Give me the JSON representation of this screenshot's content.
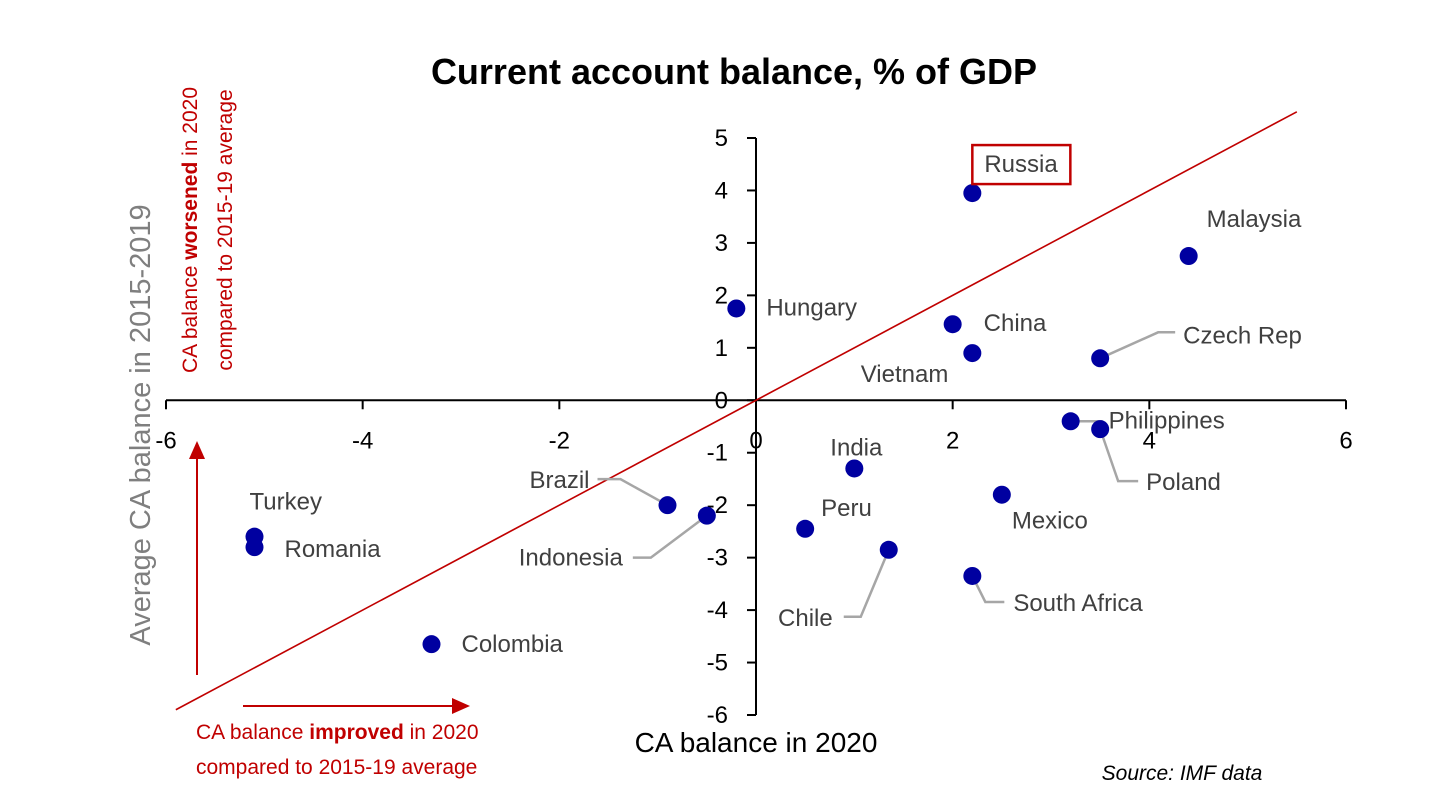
{
  "chart_data": {
    "type": "scatter",
    "title": "Current account balance, % of GDP",
    "xlabel": "CA balance in 2020",
    "ylabel": "Average CA balance in 2015-2019",
    "xlim": [
      -6,
      6
    ],
    "ylim": [
      -6,
      5
    ],
    "x_ticks": [
      -6,
      -4,
      -2,
      0,
      2,
      4,
      6
    ],
    "y_ticks": [
      5,
      4,
      3,
      2,
      1,
      0,
      -1,
      -2,
      -3,
      -4,
      -5,
      -6
    ],
    "grid": false,
    "reference_line": "y = x",
    "point_color": "#0000a0",
    "line_color": "#c00000",
    "points": [
      {
        "label": "Russia",
        "x": 2.2,
        "y": 3.95,
        "highlighted": true
      },
      {
        "label": "Malaysia",
        "x": 4.4,
        "y": 2.75
      },
      {
        "label": "Hungary",
        "x": -0.2,
        "y": 1.75
      },
      {
        "label": "China",
        "x": 2.0,
        "y": 1.45
      },
      {
        "label": "Czech Rep",
        "x": 3.5,
        "y": 0.8
      },
      {
        "label": "Vietnam",
        "x": 2.2,
        "y": 0.9
      },
      {
        "label": "Philippines",
        "x": 3.2,
        "y": -0.4
      },
      {
        "label": "Poland",
        "x": 3.5,
        "y": -0.55
      },
      {
        "label": "India",
        "x": 1.0,
        "y": -1.3
      },
      {
        "label": "Brazil",
        "x": -0.9,
        "y": -2.0
      },
      {
        "label": "Indonesia",
        "x": -0.5,
        "y": -2.2
      },
      {
        "label": "Peru",
        "x": 0.5,
        "y": -2.45
      },
      {
        "label": "Mexico",
        "x": 2.5,
        "y": -1.8
      },
      {
        "label": "Chile",
        "x": 1.35,
        "y": -2.85
      },
      {
        "label": "South Africa",
        "x": 2.2,
        "y": -3.35
      },
      {
        "label": "Turkey",
        "x": -5.1,
        "y": -2.6
      },
      {
        "label": "Romania",
        "x": -5.1,
        "y": -2.8
      },
      {
        "label": "Colombia",
        "x": -3.3,
        "y": -4.65
      }
    ],
    "annotations": {
      "worsened": [
        "CA balance worsened in 2020",
        "compared to  2015-19 average"
      ],
      "improved": [
        "CA balance improved in 2020",
        "compared to 2015-19 average"
      ]
    },
    "source": "Source: IMF data"
  }
}
